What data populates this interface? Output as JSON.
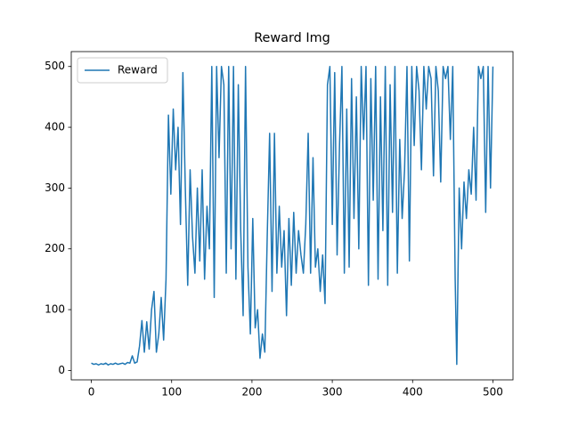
{
  "chart_data": {
    "type": "line",
    "title": "Reward Img",
    "x": [
      0,
      3,
      6,
      9,
      12,
      15,
      18,
      21,
      24,
      27,
      30,
      33,
      36,
      39,
      42,
      45,
      48,
      51,
      54,
      57,
      60,
      63,
      66,
      69,
      72,
      75,
      78,
      81,
      84,
      87,
      90,
      93,
      96,
      99,
      102,
      105,
      108,
      111,
      114,
      117,
      120,
      123,
      126,
      129,
      132,
      135,
      138,
      141,
      144,
      147,
      150,
      153,
      156,
      159,
      162,
      165,
      168,
      171,
      174,
      177,
      180,
      183,
      186,
      189,
      192,
      195,
      198,
      201,
      204,
      207,
      210,
      213,
      216,
      219,
      222,
      225,
      228,
      231,
      234,
      237,
      240,
      243,
      246,
      249,
      252,
      255,
      258,
      261,
      264,
      267,
      270,
      273,
      276,
      279,
      282,
      285,
      288,
      291,
      294,
      297,
      300,
      303,
      306,
      309,
      312,
      315,
      318,
      321,
      324,
      327,
      330,
      333,
      336,
      339,
      342,
      345,
      348,
      351,
      354,
      357,
      360,
      363,
      366,
      369,
      372,
      375,
      378,
      381,
      384,
      387,
      390,
      393,
      396,
      399,
      402,
      405,
      408,
      411,
      414,
      417,
      420,
      423,
      426,
      429,
      432,
      435,
      438,
      441,
      444,
      447,
      450,
      453,
      455,
      458,
      461,
      464,
      467,
      470,
      473,
      476,
      479,
      482,
      485,
      488,
      491,
      494,
      497,
      500
    ],
    "series": [
      {
        "name": "Reward",
        "color": "#1f77b4",
        "values": [
          12,
          10,
          11,
          9,
          11,
          10,
          12,
          9,
          11,
          10,
          12,
          10,
          11,
          12,
          10,
          13,
          12,
          24,
          12,
          14,
          40,
          82,
          30,
          80,
          35,
          100,
          130,
          30,
          60,
          120,
          50,
          150,
          420,
          290,
          430,
          330,
          400,
          240,
          490,
          300,
          140,
          330,
          220,
          160,
          300,
          180,
          330,
          150,
          270,
          200,
          500,
          120,
          500,
          350,
          500,
          470,
          160,
          500,
          200,
          500,
          150,
          470,
          230,
          90,
          500,
          170,
          60,
          250,
          70,
          100,
          20,
          60,
          30,
          220,
          390,
          130,
          390,
          160,
          270,
          170,
          230,
          90,
          250,
          140,
          260,
          160,
          230,
          190,
          160,
          240,
          390,
          160,
          350,
          170,
          200,
          130,
          190,
          110,
          470,
          500,
          240,
          490,
          190,
          370,
          500,
          160,
          430,
          170,
          480,
          250,
          450,
          200,
          500,
          380,
          500,
          140,
          480,
          280,
          500,
          150,
          450,
          230,
          500,
          140,
          470,
          260,
          500,
          160,
          380,
          250,
          330,
          500,
          180,
          500,
          370,
          500,
          460,
          330,
          500,
          430,
          500,
          480,
          320,
          500,
          460,
          310,
          500,
          480,
          500,
          380,
          500,
          150,
          10,
          300,
          200,
          310,
          250,
          330,
          290,
          400,
          280,
          500,
          480,
          500,
          260,
          500,
          300,
          500
        ]
      }
    ],
    "xlim": [
      -25,
      525
    ],
    "ylim": [
      -15.5,
      524.5
    ],
    "xticks": [
      0,
      100,
      200,
      300,
      400,
      500
    ],
    "yticks": [
      0,
      100,
      200,
      300,
      400,
      500
    ],
    "grid": false,
    "legend": "upper-left"
  }
}
